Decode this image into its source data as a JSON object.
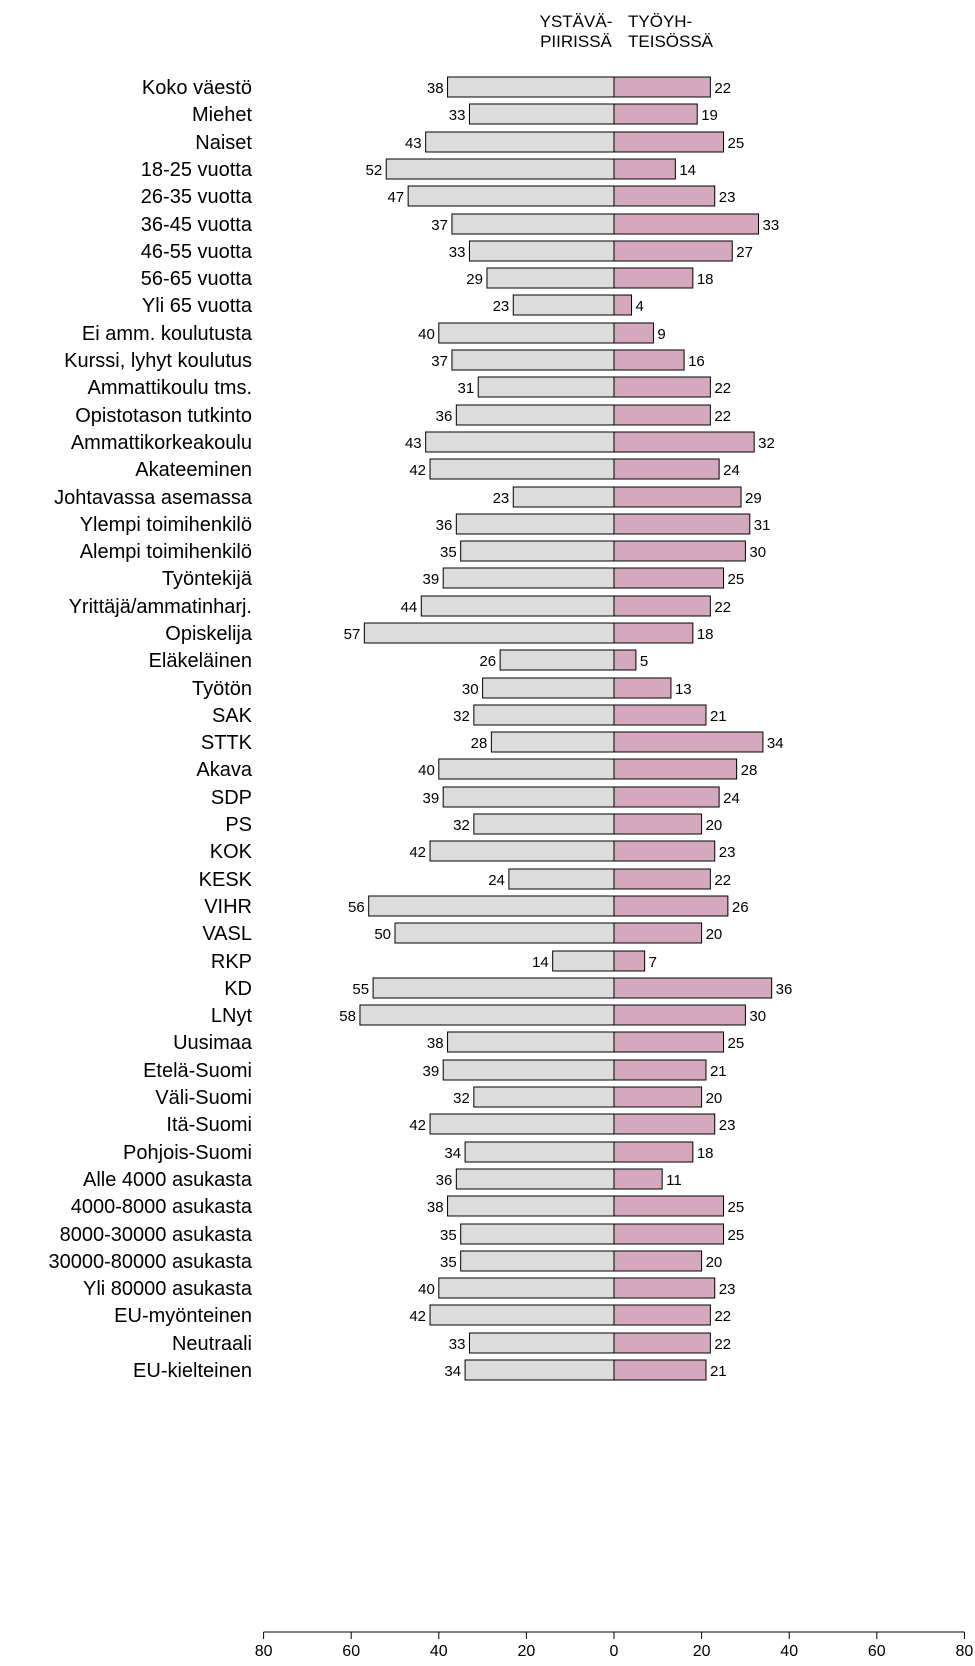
{
  "chart_data": {
    "type": "bar",
    "orientation": "horizontal-diverging",
    "series": [
      {
        "name": "YSTÄVÄ-PIIRISSÄ",
        "color": "#dcdcdc"
      },
      {
        "name": "TYÖYH-TEISÖSSÄ",
        "color": "#d4a9bd"
      }
    ],
    "header_left": [
      "YSTÄVÄ-",
      "PIIRISSÄ"
    ],
    "header_right": [
      "TYÖYH-",
      "TEISÖSSÄ"
    ],
    "xlim": [
      -80,
      80
    ],
    "ticks": [
      "80",
      "60",
      "40",
      "20",
      "0",
      "20",
      "40",
      "60",
      "80"
    ],
    "groups": [
      {
        "items": [
          {
            "label": "Koko väestö",
            "left": 38,
            "right": 22
          }
        ]
      },
      {
        "items": [
          {
            "label": "Miehet",
            "left": 33,
            "right": 19
          },
          {
            "label": "Naiset",
            "left": 43,
            "right": 25
          }
        ]
      },
      {
        "items": [
          {
            "label": "18-25 vuotta",
            "left": 52,
            "right": 14
          },
          {
            "label": "26-35 vuotta",
            "left": 47,
            "right": 23
          },
          {
            "label": "36-45 vuotta",
            "left": 37,
            "right": 33
          },
          {
            "label": "46-55 vuotta",
            "left": 33,
            "right": 27
          },
          {
            "label": "56-65 vuotta",
            "left": 29,
            "right": 18
          },
          {
            "label": "Yli 65 vuotta",
            "left": 23,
            "right": 4
          }
        ]
      },
      {
        "items": [
          {
            "label": "Ei amm. koulutusta",
            "left": 40,
            "right": 9
          },
          {
            "label": "Kurssi, lyhyt koulutus",
            "left": 37,
            "right": 16
          },
          {
            "label": "Ammattikoulu tms.",
            "left": 31,
            "right": 22
          },
          {
            "label": "Opistotason tutkinto",
            "left": 36,
            "right": 22
          },
          {
            "label": "Ammattikorkeakoulu",
            "left": 43,
            "right": 32
          },
          {
            "label": "Akateeminen",
            "left": 42,
            "right": 24
          }
        ]
      },
      {
        "items": [
          {
            "label": "Johtavassa asemassa",
            "left": 23,
            "right": 29
          },
          {
            "label": "Ylempi toimihenkilö",
            "left": 36,
            "right": 31
          },
          {
            "label": "Alempi toimihenkilö",
            "left": 35,
            "right": 30
          },
          {
            "label": "Työntekijä",
            "left": 39,
            "right": 25
          },
          {
            "label": "Yrittäjä/ammatinharj.",
            "left": 44,
            "right": 22
          },
          {
            "label": "Opiskelija",
            "left": 57,
            "right": 18
          },
          {
            "label": "Eläkeläinen",
            "left": 26,
            "right": 5
          },
          {
            "label": "Työtön",
            "left": 30,
            "right": 13
          }
        ]
      },
      {
        "items": [
          {
            "label": "SAK",
            "left": 32,
            "right": 21
          },
          {
            "label": "STTK",
            "left": 28,
            "right": 34
          },
          {
            "label": "Akava",
            "left": 40,
            "right": 28
          }
        ]
      },
      {
        "items": [
          {
            "label": "SDP",
            "left": 39,
            "right": 24
          },
          {
            "label": "PS",
            "left": 32,
            "right": 20
          },
          {
            "label": "KOK",
            "left": 42,
            "right": 23
          },
          {
            "label": "KESK",
            "left": 24,
            "right": 22
          },
          {
            "label": "VIHR",
            "left": 56,
            "right": 26
          },
          {
            "label": "VASL",
            "left": 50,
            "right": 20
          },
          {
            "label": "RKP",
            "left": 14,
            "right": 7
          },
          {
            "label": "KD",
            "left": 55,
            "right": 36
          },
          {
            "label": "LNyt",
            "left": 58,
            "right": 30
          }
        ]
      },
      {
        "items": [
          {
            "label": "Uusimaa",
            "left": 38,
            "right": 25
          },
          {
            "label": "Etelä-Suomi",
            "left": 39,
            "right": 21
          },
          {
            "label": "Väli-Suomi",
            "left": 32,
            "right": 20
          },
          {
            "label": "Itä-Suomi",
            "left": 42,
            "right": 23
          },
          {
            "label": "Pohjois-Suomi",
            "left": 34,
            "right": 18
          }
        ]
      },
      {
        "items": [
          {
            "label": "Alle 4000 asukasta",
            "left": 36,
            "right": 11
          },
          {
            "label": "4000-8000 asukasta",
            "left": 38,
            "right": 25
          },
          {
            "label": "8000-30000 asukasta",
            "left": 35,
            "right": 25
          },
          {
            "label": "30000-80000 asukasta",
            "left": 35,
            "right": 20
          },
          {
            "label": "Yli 80000 asukasta",
            "left": 40,
            "right": 23
          }
        ]
      },
      {
        "items": [
          {
            "label": "EU-myönteinen",
            "left": 42,
            "right": 22
          },
          {
            "label": "Neutraali",
            "left": 33,
            "right": 22
          },
          {
            "label": "EU-kielteinen",
            "left": 34,
            "right": 21
          }
        ]
      }
    ]
  }
}
